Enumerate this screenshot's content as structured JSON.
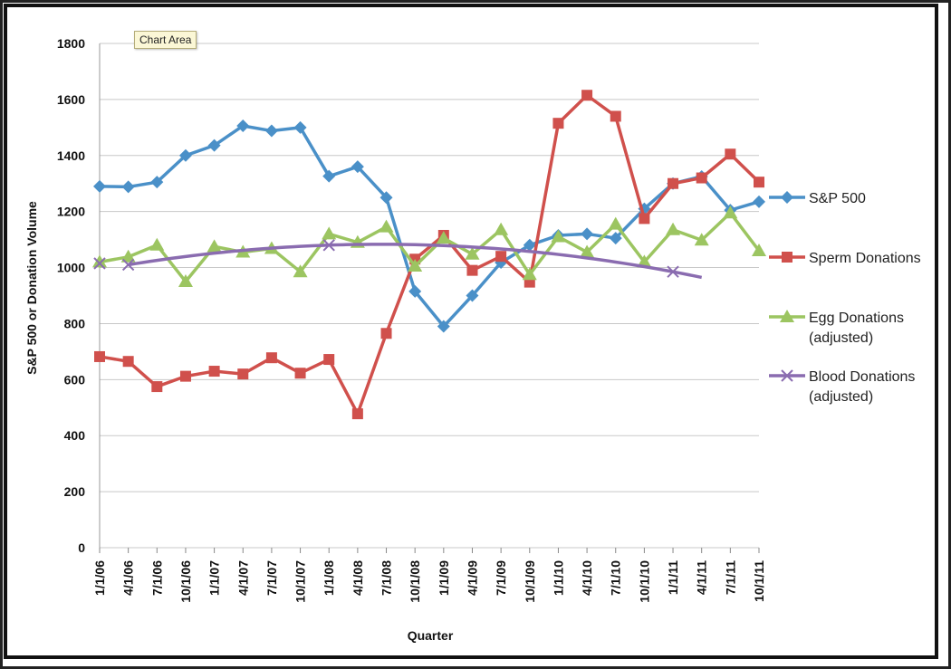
{
  "tooltip": "Chart Area",
  "chart_data": {
    "type": "line",
    "xlabel": "Quarter",
    "ylabel": "S&P 500 or Donation Volume",
    "ylim": [
      0,
      1800
    ],
    "yticks": [
      0,
      200,
      400,
      600,
      800,
      1000,
      1200,
      1400,
      1600,
      1800
    ],
    "grid": "horizontal",
    "legend_position": "right",
    "categories": [
      "1/1/06",
      "4/1/06",
      "7/1/06",
      "10/1/06",
      "1/1/07",
      "4/1/07",
      "7/1/07",
      "10/1/07",
      "1/1/08",
      "4/1/08",
      "7/1/08",
      "10/1/08",
      "1/1/09",
      "4/1/09",
      "7/1/09",
      "10/1/09",
      "1/1/10",
      "4/1/10",
      "7/1/10",
      "10/1/10",
      "1/1/11",
      "4/1/11",
      "7/1/11",
      "10/1/11"
    ],
    "series": [
      {
        "name": "S&P 500",
        "color": "#4a90c8",
        "marker": "diamond",
        "values": [
          1290,
          1288,
          1305,
          1400,
          1436,
          1506,
          1488,
          1500,
          1326,
          1360,
          1250,
          915,
          790,
          900,
          1018,
          1080,
          1115,
          1120,
          1105,
          1210,
          1300,
          1325,
          1205,
          1235
        ]
      },
      {
        "name": "Sperm Donations",
        "color": "#d0504c",
        "marker": "square",
        "values": [
          682,
          665,
          575,
          612,
          630,
          620,
          678,
          623,
          672,
          478,
          765,
          1030,
          1115,
          990,
          1040,
          948,
          1515,
          1615,
          1540,
          1175,
          1300,
          1320,
          1405,
          1305
        ]
      },
      {
        "name": "Egg Donations (adjusted)",
        "color": "#9cc561",
        "marker": "triangle",
        "values": [
          1020,
          1038,
          1080,
          950,
          1075,
          1055,
          1068,
          985,
          1120,
          1090,
          1145,
          1005,
          1105,
          1048,
          1135,
          975,
          1110,
          1055,
          1155,
          1020,
          1135,
          1098,
          1195,
          1060
        ]
      },
      {
        "name": "Blood Donations (adjusted)",
        "color": "#8a6cb0",
        "marker": "x",
        "values": [
          1015,
          1010,
          null,
          null,
          null,
          null,
          null,
          null,
          1080,
          null,
          null,
          null,
          null,
          null,
          null,
          null,
          null,
          null,
          null,
          null,
          985,
          980,
          null,
          null
        ]
      }
    ],
    "legend_lines": [
      [
        "S&P 500"
      ],
      [
        "Sperm Donations"
      ],
      [
        "Egg Donations",
        "(adjusted)"
      ],
      [
        "Blood Donations",
        "(adjusted)"
      ]
    ]
  }
}
